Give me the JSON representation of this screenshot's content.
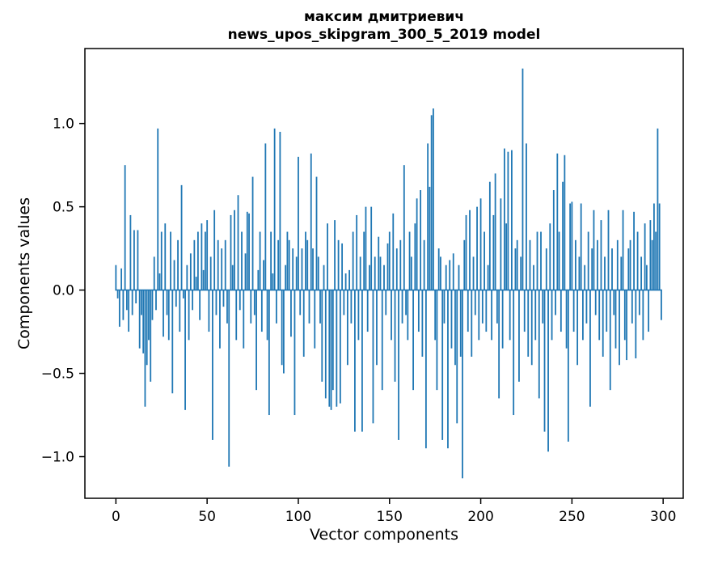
{
  "chart_data": {
    "type": "bar",
    "title": "максим дмитриевич",
    "subtitle": "news_upos_skipgram_300_5_2019 model",
    "xlabel": "Vector components",
    "ylabel": "Components values",
    "x_start": 0,
    "n_bars": 300,
    "bar_color": "#1f77b4",
    "background_color": "#ffffff",
    "xlim": [
      -17,
      311
    ],
    "ylim": [
      -1.25,
      1.45
    ],
    "xticks": [
      0,
      50,
      100,
      150,
      200,
      250,
      300
    ],
    "xtick_labels": [
      "0",
      "50",
      "100",
      "150",
      "200",
      "250",
      "300"
    ],
    "yticks": [
      -1.0,
      -0.5,
      0.0,
      0.5,
      1.0
    ],
    "ytick_labels": [
      "−1.0",
      "−0.5",
      "0.0",
      "0.5",
      "1.0"
    ],
    "grid": false,
    "legend": false,
    "values": [
      0.15,
      -0.05,
      -0.22,
      0.13,
      -0.18,
      0.75,
      -0.12,
      -0.25,
      0.45,
      -0.15,
      0.36,
      -0.08,
      0.36,
      -0.35,
      -0.15,
      -0.38,
      -0.7,
      -0.45,
      -0.3,
      -0.55,
      -0.18,
      0.2,
      -0.12,
      0.97,
      0.1,
      0.35,
      -0.28,
      0.4,
      -0.15,
      -0.3,
      0.35,
      -0.62,
      0.18,
      -0.1,
      0.3,
      -0.25,
      0.63,
      -0.05,
      -0.72,
      0.15,
      -0.3,
      0.22,
      -0.12,
      0.3,
      0.08,
      0.35,
      -0.18,
      0.4,
      0.12,
      0.35,
      0.42,
      -0.25,
      0.2,
      -0.9,
      0.48,
      -0.15,
      0.3,
      -0.35,
      0.25,
      -0.1,
      0.3,
      -0.2,
      -1.06,
      0.45,
      0.15,
      0.48,
      -0.3,
      0.57,
      -0.12,
      0.35,
      -0.35,
      0.22,
      0.47,
      0.46,
      -0.2,
      0.68,
      -0.15,
      -0.6,
      0.12,
      0.35,
      -0.25,
      0.18,
      0.88,
      -0.3,
      -0.75,
      0.35,
      0.1,
      0.97,
      -0.2,
      0.3,
      0.95,
      -0.45,
      -0.5,
      0.15,
      0.35,
      0.3,
      -0.28,
      0.25,
      -0.75,
      0.2,
      0.8,
      -0.15,
      0.25,
      -0.4,
      0.35,
      0.3,
      -0.2,
      0.82,
      0.25,
      -0.35,
      0.68,
      0.2,
      -0.2,
      -0.55,
      0.15,
      -0.65,
      0.4,
      -0.7,
      -0.72,
      -0.6,
      0.42,
      -0.7,
      0.3,
      -0.68,
      0.28,
      -0.15,
      0.1,
      -0.45,
      0.12,
      -0.2,
      0.35,
      -0.85,
      0.45,
      -0.3,
      0.2,
      -0.85,
      0.35,
      0.5,
      -0.25,
      0.15,
      0.5,
      -0.8,
      0.2,
      -0.45,
      0.32,
      0.2,
      -0.6,
      0.15,
      -0.15,
      0.28,
      0.35,
      -0.3,
      0.46,
      -0.55,
      0.25,
      -0.9,
      0.3,
      -0.2,
      0.75,
      -0.15,
      -0.3,
      0.35,
      0.2,
      -0.6,
      0.4,
      0.55,
      -0.25,
      0.6,
      -0.4,
      0.3,
      -0.95,
      0.88,
      0.62,
      1.05,
      1.09,
      -0.3,
      -0.6,
      0.25,
      0.2,
      -0.9,
      -0.2,
      0.15,
      -0.95,
      0.18,
      -0.35,
      0.22,
      -0.45,
      -0.8,
      0.15,
      -0.4,
      -1.13,
      0.3,
      0.45,
      -0.25,
      0.48,
      -0.4,
      0.2,
      -0.15,
      0.5,
      -0.3,
      0.55,
      -0.2,
      0.35,
      -0.25,
      0.15,
      0.65,
      -0.3,
      0.45,
      0.7,
      -0.2,
      -0.65,
      0.55,
      -0.35,
      0.85,
      0.4,
      0.83,
      -0.3,
      0.84,
      -0.75,
      0.25,
      0.3,
      -0.55,
      0.2,
      1.33,
      -0.25,
      0.88,
      -0.4,
      0.3,
      -0.45,
      0.15,
      -0.3,
      0.35,
      -0.65,
      0.35,
      -0.2,
      -0.85,
      0.25,
      -0.97,
      0.4,
      -0.3,
      0.6,
      -0.15,
      0.82,
      0.35,
      -0.25,
      0.65,
      0.81,
      -0.35,
      -0.91,
      0.52,
      0.53,
      -0.25,
      0.3,
      -0.45,
      0.2,
      0.52,
      -0.3,
      0.15,
      -0.2,
      0.35,
      -0.7,
      0.25,
      0.48,
      -0.15,
      0.3,
      -0.3,
      0.42,
      -0.4,
      0.2,
      -0.25,
      0.48,
      -0.6,
      0.25,
      -0.15,
      -0.35,
      0.3,
      -0.45,
      0.2,
      0.48,
      -0.3,
      -0.42,
      0.25,
      0.3,
      -0.2,
      0.47,
      -0.41,
      0.35,
      -0.15,
      0.2,
      -0.3,
      0.4,
      0.15,
      -0.25,
      0.42,
      0.3,
      0.52,
      0.35,
      0.97,
      0.52,
      -0.18
    ]
  }
}
